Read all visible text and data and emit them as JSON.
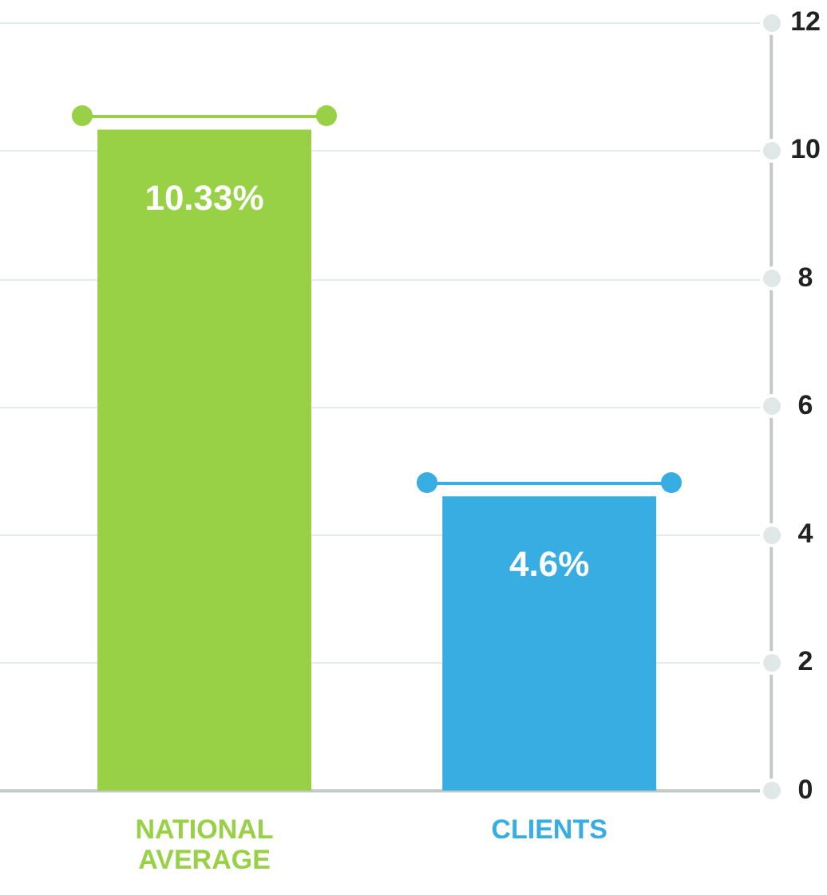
{
  "chart_data": {
    "type": "bar",
    "categories": [
      "NATIONAL AVERAGE",
      "CLIENTS"
    ],
    "values": [
      10.33,
      4.6
    ],
    "colors": [
      "#98d046",
      "#37ade1"
    ],
    "value_labels": [
      "10.33%",
      "4.6%"
    ],
    "ylim": [
      0,
      12
    ],
    "yticks": [
      0,
      2,
      4,
      6,
      8,
      10,
      12
    ],
    "grid": "y"
  }
}
